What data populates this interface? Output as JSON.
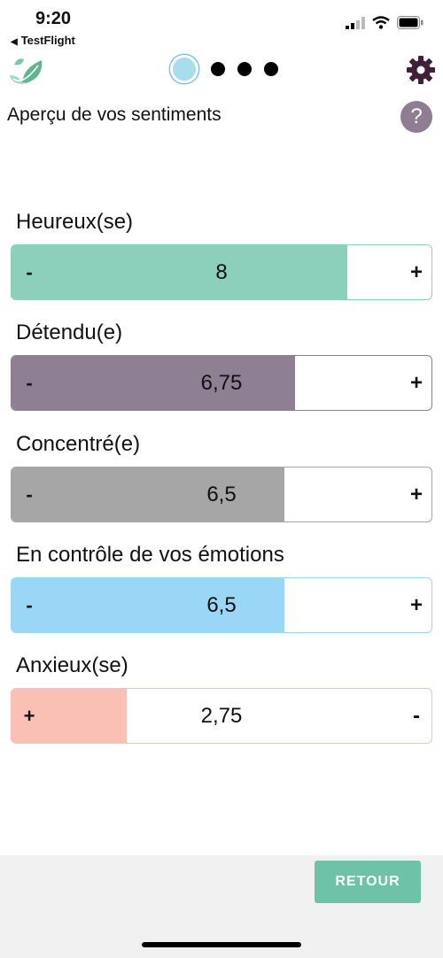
{
  "status": {
    "time": "9:20",
    "back_app": "TestFlight"
  },
  "page": {
    "title": "Aperçu de vos sentiments",
    "help": "?"
  },
  "feelings": [
    {
      "label": "Heureux(se)",
      "value": "8",
      "fraction": 0.8,
      "color": "#8ccfbb",
      "left_btn": "-",
      "right_btn": "+"
    },
    {
      "label": "Détendu(e)",
      "value": "6,75",
      "fraction": 0.675,
      "color": "#8f7f92",
      "left_btn": "-",
      "right_btn": "+"
    },
    {
      "label": "Concentré(e)",
      "value": "6,5",
      "fraction": 0.65,
      "color": "#a7a6a6",
      "left_btn": "-",
      "right_btn": "+"
    },
    {
      "label": "En contrôle de vos émotions",
      "value": "6,5",
      "fraction": 0.65,
      "color": "#9ad7f7",
      "left_btn": "-",
      "right_btn": "+"
    },
    {
      "label": "Anxieux(se)",
      "value": "2,75",
      "fraction": 0.275,
      "color": "#fac0b5",
      "left_btn": "+",
      "right_btn": "-"
    }
  ],
  "footer": {
    "retour": "RETOUR"
  },
  "colors": {
    "accent": "#6dc2a8",
    "help": "#8f7d94",
    "gear": "#3f1f3a",
    "pager_active": "#a8ddee"
  }
}
